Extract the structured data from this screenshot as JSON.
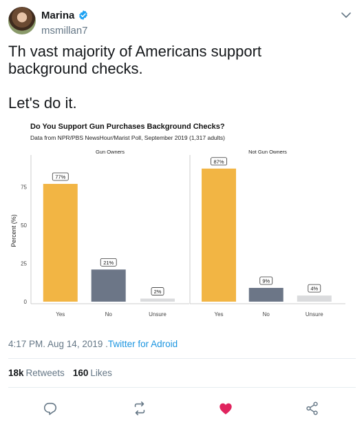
{
  "user": {
    "display_name": "Marina",
    "handle": "msmillan7",
    "verified": true
  },
  "tweet": {
    "line1": "Th vast majority of Americans support",
    "line2": "background checks.",
    "line3": "Let's do it.",
    "time": "4:17 PM. Aug 14, 2019",
    "separator": " .",
    "source": "Twitter for Adroid"
  },
  "stats": {
    "retweets_count": "18k",
    "retweets_label": "Retweets",
    "likes_count": "160",
    "likes_label": "Likes"
  },
  "icons": {
    "reply": "reply-icon",
    "retweet": "retweet-icon",
    "like": "heart-icon",
    "share": "share-icon",
    "menu": "chevron-down-icon",
    "verified": "verified-badge-icon"
  },
  "colors": {
    "yes": "#f2b544",
    "no": "#6c7687",
    "unsure": "#dadbdd",
    "like_active": "#e0245e",
    "link": "#1b95e0",
    "verified": "#1da1f2"
  },
  "chart_data": {
    "type": "bar",
    "title": "Do You Support Gun Purchases Background Checks?",
    "subtitle": "Data from NPR/PBS NewsHour/Marist Poll, September 2019 (1,317 adults)",
    "ylabel": "Percent (%)",
    "xlabel": "",
    "ylim": [
      0,
      95
    ],
    "yticks": [
      0,
      25,
      50,
      75
    ],
    "categories": [
      "Yes",
      "No",
      "Unsure"
    ],
    "panels": [
      {
        "name": "Gun Owners",
        "values": [
          77,
          21,
          2
        ],
        "labels": [
          "77%",
          "21%",
          "2%"
        ]
      },
      {
        "name": "Not Gun Owners",
        "values": [
          87,
          9,
          4
        ],
        "labels": [
          "87%",
          "9%",
          "4%"
        ]
      }
    ],
    "grid": false
  }
}
